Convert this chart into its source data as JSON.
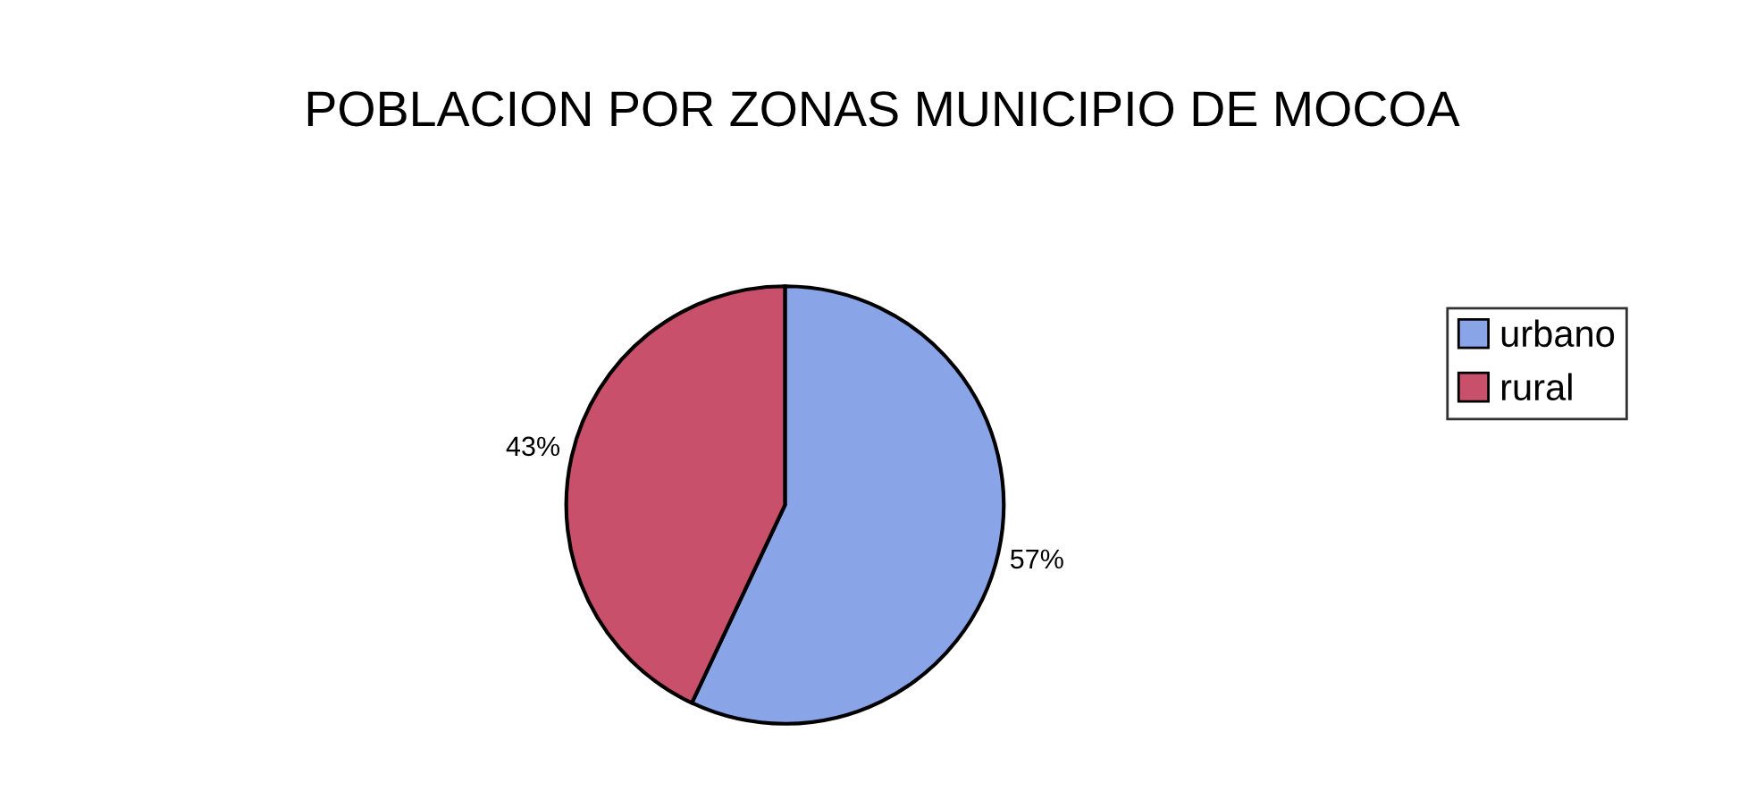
{
  "chart_data": {
    "type": "pie",
    "title": "POBLACION POR ZONAS MUNICIPIO DE MOCOA",
    "categories": [
      "urbano",
      "rural"
    ],
    "values": [
      57,
      43
    ],
    "colors": [
      "#8aa4e8",
      "#c8506a"
    ],
    "value_labels": [
      "57%",
      "43%"
    ],
    "legend": "right"
  }
}
